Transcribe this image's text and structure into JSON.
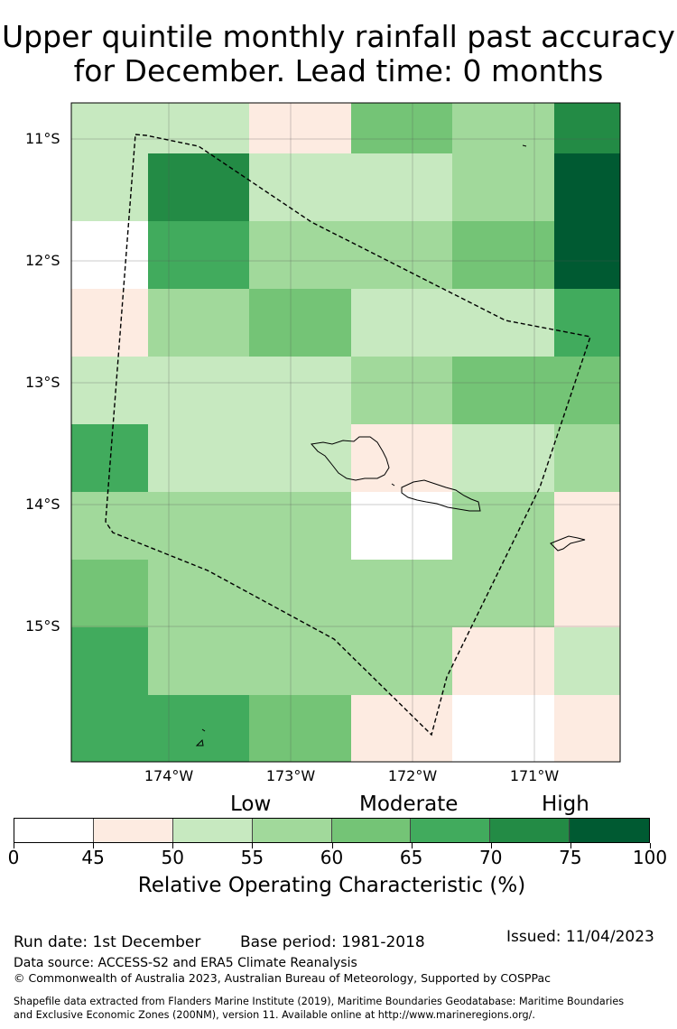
{
  "title_line1": "Upper quintile monthly rainfall past accuracy",
  "title_line2": "for December. Lead time: 0 months",
  "map": {
    "lat_labels": [
      "11°S",
      "12°S",
      "13°S",
      "14°S",
      "15°S"
    ],
    "lon_labels": [
      "174°W",
      "173°W",
      "172°W",
      "171°W"
    ],
    "grid_levels": [
      [
        2,
        2,
        1,
        4,
        3,
        6
      ],
      [
        2,
        6,
        2,
        2,
        3,
        7
      ],
      [
        0,
        5,
        3,
        3,
        4,
        7
      ],
      [
        1,
        3,
        4,
        2,
        2,
        5
      ],
      [
        2,
        2,
        2,
        3,
        4,
        4
      ],
      [
        5,
        2,
        2,
        1,
        2,
        3
      ],
      [
        3,
        3,
        3,
        0,
        3,
        1
      ],
      [
        4,
        3,
        3,
        3,
        3,
        1
      ],
      [
        5,
        3,
        3,
        3,
        1,
        2
      ],
      [
        5,
        5,
        4,
        1,
        0,
        1
      ]
    ]
  },
  "colorbar": {
    "categories": [
      "Low",
      "Moderate",
      "High"
    ],
    "colors": [
      "#ffffff",
      "#fdebe1",
      "#c7e9c0",
      "#a1d99b",
      "#74c476",
      "#41ab5d",
      "#238b45",
      "#005a32"
    ],
    "ticks": [
      "0",
      "45",
      "50",
      "55",
      "60",
      "65",
      "70",
      "75",
      "100"
    ],
    "label": "Relative Operating Characteristic (%)"
  },
  "footer": {
    "run_date": "Run date: 1st December",
    "base_period": "Base period: 1981-2018",
    "issued": "Issued: 11/04/2023",
    "data_source": "Data source: ACCESS-S2 and ERA5 Climate Reanalysis",
    "copyright": "© Commonwealth of Australia 2023, Australian Bureau of Meteorology, Supported by COSPPac",
    "shapefile_line1": "Shapefile data extracted from Flanders Marine Institute (2019), Maritime Boundaries Geodatabase: Maritime Boundaries",
    "shapefile_line2": "and Exclusive Economic Zones (200NM), version 11. Available online at http://www.marineregions.org/."
  }
}
